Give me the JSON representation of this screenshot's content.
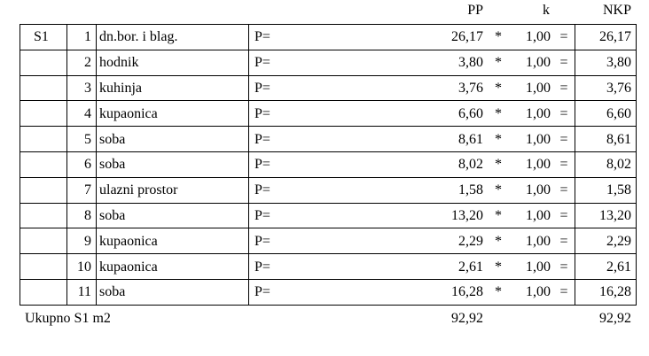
{
  "header": {
    "columns": [
      "PP",
      "k",
      "NKP"
    ]
  },
  "table": {
    "group": "S1",
    "rows": [
      [
        "1",
        "dn.bor. i blag.",
        "P=",
        "26,17",
        "*",
        "1,00",
        "=",
        "26,17"
      ],
      [
        "2",
        "hodnik",
        "P=",
        "3,80",
        "*",
        "1,00",
        "=",
        "3,80"
      ],
      [
        "3",
        "kuhinja",
        "P=",
        "3,76",
        "*",
        "1,00",
        "=",
        "3,76"
      ],
      [
        "4",
        "kupaonica",
        "P=",
        "6,60",
        "*",
        "1,00",
        "=",
        "6,60"
      ],
      [
        "5",
        "soba",
        "P=",
        "8,61",
        "*",
        "1,00",
        "=",
        "8,61"
      ],
      [
        "6",
        "soba",
        "P=",
        "8,02",
        "*",
        "1,00",
        "=",
        "8,02"
      ],
      [
        "7",
        "ulazni prostor",
        "P=",
        "1,58",
        "*",
        "1,00",
        "=",
        "1,58"
      ],
      [
        "8",
        "soba",
        "P=",
        "13,20",
        "*",
        "1,00",
        "=",
        "13,20"
      ],
      [
        "9",
        "kupaonica",
        "P=",
        "2,29",
        "*",
        "1,00",
        "=",
        "2,29"
      ],
      [
        "10",
        "kupaonica",
        "P=",
        "2,61",
        "*",
        "1,00",
        "=",
        "2,61"
      ],
      [
        "11",
        "soba",
        "P=",
        "16,28",
        "*",
        "1,00",
        "=",
        "16,28"
      ]
    ]
  },
  "total": {
    "label": "Ukupno S1 m2",
    "pp": "92,92",
    "nkp": "92,92"
  }
}
